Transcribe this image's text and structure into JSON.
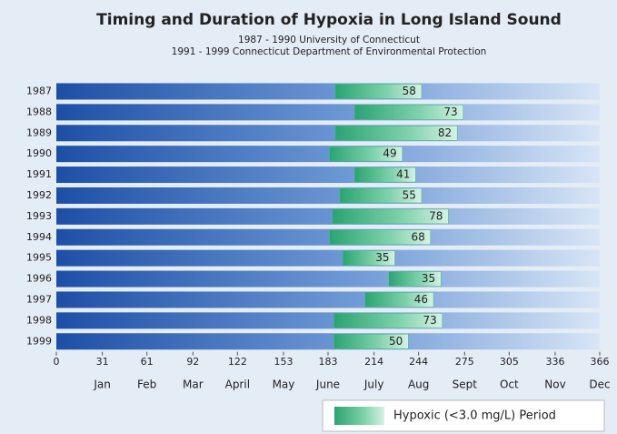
{
  "chart_data": {
    "type": "floating_bar",
    "title": "Timing and Duration of Hypoxia in Long Island Sound",
    "subtitle": [
      "1987 - 1990 University of Connecticut",
      "1991 - 1999 Connecticut Department of Environmental Protection"
    ],
    "categories": [
      "1987",
      "1988",
      "1989",
      "1990",
      "1991",
      "1992",
      "1993",
      "1994",
      "1995",
      "1996",
      "1997",
      "1998",
      "1999"
    ],
    "starts": [
      188,
      201,
      188,
      184,
      201,
      191,
      186,
      184,
      193,
      224,
      208,
      187,
      187
    ],
    "series": [
      {
        "name": "Hypoxic (<3.0 mg/L) Period",
        "color": "#3dbb86",
        "values": [
          58,
          73,
          82,
          49,
          41,
          55,
          78,
          68,
          35,
          35,
          46,
          73,
          50
        ]
      }
    ],
    "xlim": [
      0,
      366
    ],
    "xticks": [
      0,
      31,
      61,
      92,
      122,
      153,
      183,
      214,
      244,
      275,
      305,
      336,
      366
    ],
    "months": [
      "Jan",
      "Feb",
      "Mar",
      "April",
      "May",
      "June",
      "July",
      "Aug",
      "Sept",
      "Oct",
      "Nov",
      "Dec"
    ],
    "background_color": "#1d4fa6",
    "grid": false,
    "legend": "bottom-right"
  }
}
